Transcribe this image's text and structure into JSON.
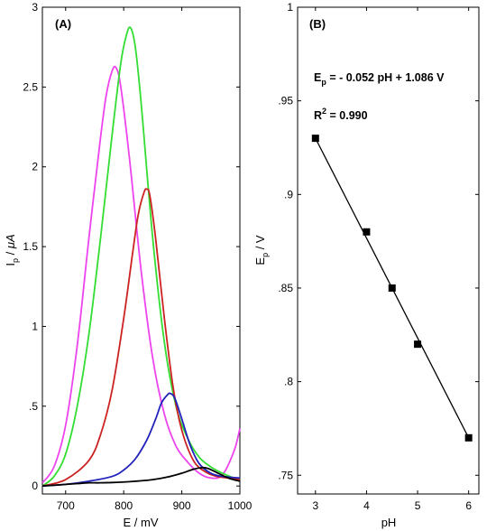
{
  "chart_data": [
    {
      "panel_label": "(A)",
      "type": "line",
      "xlabel": "E / mV",
      "ylabel": {
        "main": "I",
        "sub": "p",
        "rest": " / ",
        "unit": "μA"
      },
      "xlim": [
        660,
        1000
      ],
      "ylim": [
        -0.05,
        3
      ],
      "xticks": [
        700,
        800,
        900,
        1000
      ],
      "yticks": [
        0,
        0.5,
        1,
        1.5,
        2,
        2.5,
        3
      ],
      "grid": false,
      "legend": "none",
      "series": [
        {
          "color": "#ee44ee",
          "x": [
            660,
            680,
            700,
            720,
            740,
            760,
            770,
            780,
            787,
            795,
            810,
            830,
            850,
            870,
            890,
            910,
            930,
            950,
            970,
            990,
            1000
          ],
          "y": [
            0.02,
            0.12,
            0.38,
            0.88,
            1.55,
            2.18,
            2.45,
            2.6,
            2.62,
            2.5,
            2.05,
            1.35,
            0.8,
            0.45,
            0.25,
            0.15,
            0.08,
            0.05,
            0.07,
            0.22,
            0.36
          ]
        },
        {
          "color": "#33dd33",
          "x": [
            660,
            680,
            700,
            720,
            740,
            760,
            780,
            795,
            805,
            812,
            820,
            830,
            850,
            870,
            890,
            910,
            930,
            950,
            970,
            990,
            1000
          ],
          "y": [
            0.0,
            0.06,
            0.2,
            0.5,
            0.95,
            1.55,
            2.2,
            2.65,
            2.83,
            2.87,
            2.75,
            2.4,
            1.55,
            0.9,
            0.5,
            0.3,
            0.18,
            0.12,
            0.08,
            0.05,
            0.04
          ]
        },
        {
          "color": "#cc2222",
          "x": [
            660,
            700,
            740,
            760,
            780,
            800,
            815,
            825,
            835,
            840,
            845,
            855,
            870,
            885,
            900,
            920,
            940,
            960,
            980,
            1000
          ],
          "y": [
            0.0,
            0.04,
            0.16,
            0.32,
            0.6,
            1.05,
            1.45,
            1.7,
            1.84,
            1.86,
            1.82,
            1.55,
            1.05,
            0.62,
            0.35,
            0.16,
            0.09,
            0.06,
            0.05,
            0.04
          ]
        },
        {
          "color": "#2222bb",
          "x": [
            660,
            700,
            740,
            780,
            800,
            820,
            840,
            855,
            865,
            875,
            880,
            888,
            900,
            915,
            930,
            950,
            970,
            1000
          ],
          "y": [
            0.0,
            0.01,
            0.03,
            0.06,
            0.1,
            0.17,
            0.29,
            0.42,
            0.52,
            0.57,
            0.58,
            0.55,
            0.42,
            0.25,
            0.14,
            0.08,
            0.06,
            0.05
          ]
        },
        {
          "color": "#000000",
          "x": [
            660,
            700,
            720,
            740,
            760,
            800,
            850,
            880,
            900,
            920,
            935,
            945,
            960,
            980,
            1000
          ],
          "y": [
            0.0,
            0.01,
            0.015,
            0.02,
            0.02,
            0.025,
            0.04,
            0.06,
            0.08,
            0.105,
            0.115,
            0.11,
            0.085,
            0.05,
            0.03
          ]
        }
      ]
    },
    {
      "panel_label": "(B)",
      "type": "scatter",
      "xlabel": "pH",
      "ylabel": {
        "main": "E",
        "sub": "p",
        "rest": " / V"
      },
      "xlim": [
        2.65,
        6.2
      ],
      "ylim": [
        0.74,
        1.0
      ],
      "xticks": [
        3,
        4,
        5,
        6
      ],
      "yticks": [
        0.75,
        0.8,
        0.85,
        0.9,
        0.95,
        1
      ],
      "grid": false,
      "legend": "none",
      "x": [
        3,
        4,
        4.5,
        5,
        6
      ],
      "y": [
        0.93,
        0.88,
        0.85,
        0.82,
        0.77
      ],
      "fit_line": {
        "x": [
          3,
          6
        ],
        "y": [
          0.93,
          0.77
        ]
      },
      "annotation_equation": {
        "main": "E",
        "sub": "p",
        "rest": " = - 0.052 pH + 1.086 V"
      },
      "annotation_r2": {
        "main": "R",
        "sup": "2",
        "rest": " = 0.990"
      }
    }
  ]
}
